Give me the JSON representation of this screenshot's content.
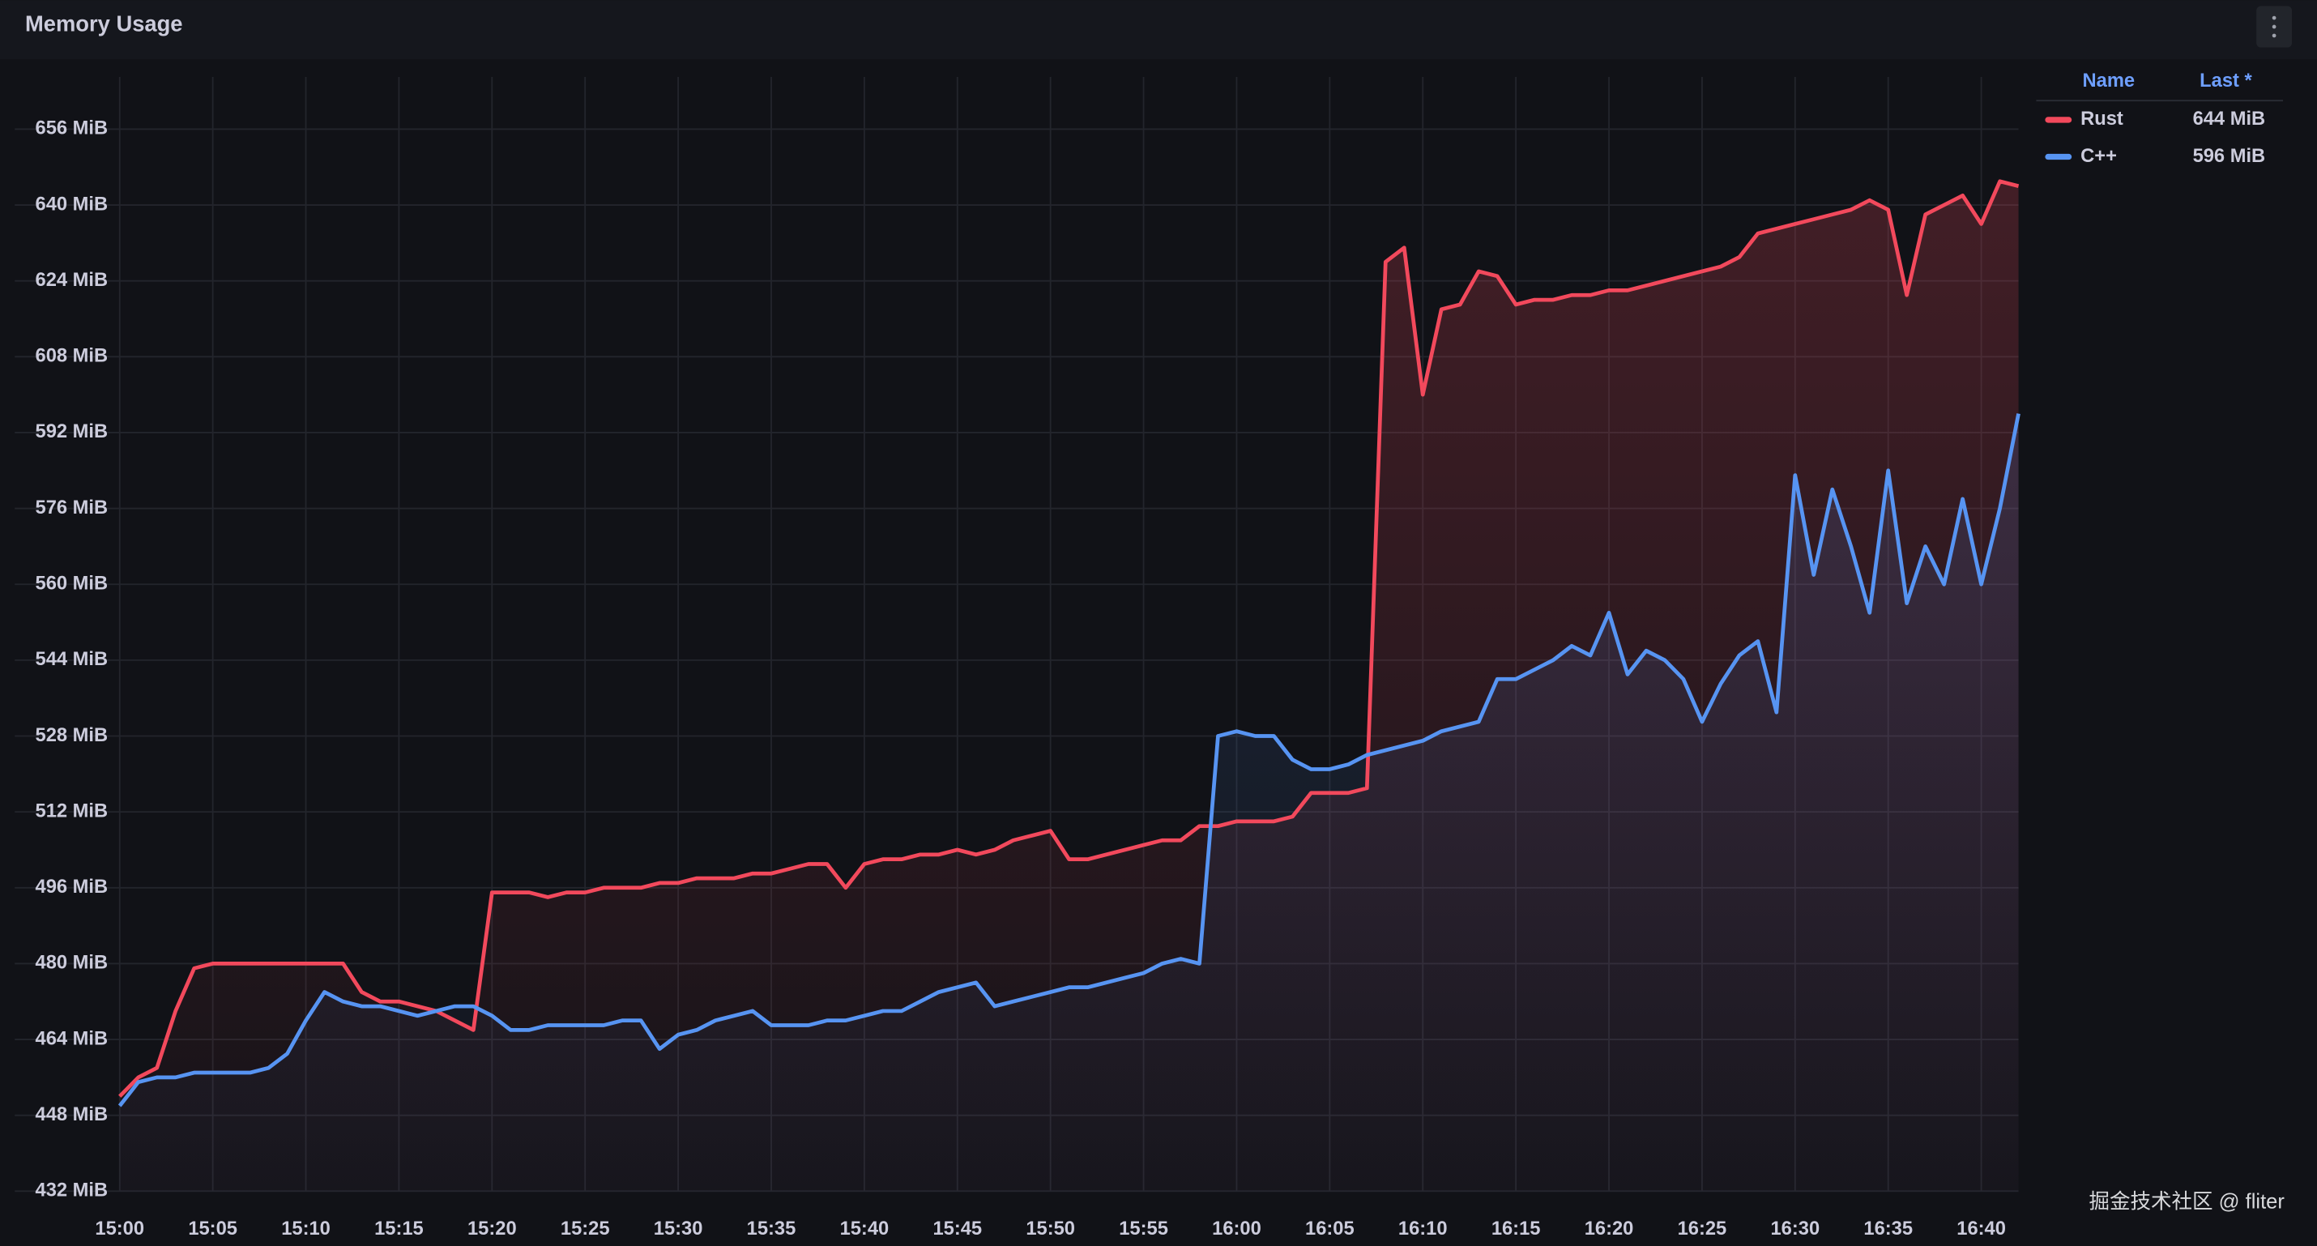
{
  "chart_data": {
    "type": "line",
    "title": "Memory Usage",
    "x": [
      "15:00",
      "15:01",
      "15:02",
      "15:03",
      "15:04",
      "15:05",
      "15:06",
      "15:07",
      "15:08",
      "15:09",
      "15:10",
      "15:11",
      "15:12",
      "15:13",
      "15:14",
      "15:15",
      "15:16",
      "15:17",
      "15:18",
      "15:19",
      "15:20",
      "15:21",
      "15:22",
      "15:23",
      "15:24",
      "15:25",
      "15:26",
      "15:27",
      "15:28",
      "15:29",
      "15:30",
      "15:31",
      "15:32",
      "15:33",
      "15:34",
      "15:35",
      "15:36",
      "15:37",
      "15:38",
      "15:39",
      "15:40",
      "15:41",
      "15:42",
      "15:43",
      "15:44",
      "15:45",
      "15:46",
      "15:47",
      "15:48",
      "15:49",
      "15:50",
      "15:51",
      "15:52",
      "15:53",
      "15:54",
      "15:55",
      "15:56",
      "15:57",
      "15:58",
      "15:59",
      "16:00",
      "16:01",
      "16:02",
      "16:03",
      "16:04",
      "16:05",
      "16:06",
      "16:07",
      "16:08",
      "16:09",
      "16:10",
      "16:11",
      "16:12",
      "16:13",
      "16:14",
      "16:15",
      "16:16",
      "16:17",
      "16:18",
      "16:19",
      "16:20",
      "16:21",
      "16:22",
      "16:23",
      "16:24",
      "16:25",
      "16:26",
      "16:27",
      "16:28",
      "16:29",
      "16:30",
      "16:31",
      "16:32",
      "16:33",
      "16:34",
      "16:35",
      "16:36",
      "16:37",
      "16:38",
      "16:39",
      "16:40",
      "16:41",
      "16:42"
    ],
    "series": [
      {
        "name": "Rust",
        "color": "#f2495c",
        "last_label": "644 MiB",
        "values": [
          452,
          456,
          458,
          470,
          479,
          480,
          480,
          480,
          480,
          480,
          480,
          480,
          480,
          474,
          472,
          472,
          471,
          470,
          468,
          466,
          495,
          495,
          495,
          494,
          495,
          495,
          496,
          496,
          496,
          497,
          497,
          498,
          498,
          498,
          499,
          499,
          500,
          501,
          501,
          496,
          501,
          502,
          502,
          503,
          503,
          504,
          503,
          504,
          506,
          507,
          508,
          502,
          502,
          503,
          504,
          505,
          506,
          506,
          509,
          509,
          510,
          510,
          510,
          511,
          516,
          516,
          516,
          517,
          628,
          631,
          600,
          618,
          619,
          626,
          625,
          619,
          620,
          620,
          621,
          621,
          622,
          622,
          623,
          624,
          625,
          626,
          627,
          629,
          634,
          635,
          636,
          637,
          638,
          639,
          641,
          639,
          621,
          638,
          640,
          642,
          636,
          645,
          644
        ]
      },
      {
        "name": "C++",
        "color": "#5794f2",
        "last_label": "596 MiB",
        "values": [
          450,
          455,
          456,
          456,
          457,
          457,
          457,
          457,
          458,
          461,
          468,
          474,
          472,
          471,
          471,
          470,
          469,
          470,
          471,
          471,
          469,
          466,
          466,
          467,
          467,
          467,
          467,
          468,
          468,
          462,
          465,
          466,
          468,
          469,
          470,
          467,
          467,
          467,
          468,
          468,
          469,
          470,
          470,
          472,
          474,
          475,
          476,
          471,
          472,
          473,
          474,
          475,
          475,
          476,
          477,
          478,
          480,
          481,
          480,
          528,
          529,
          528,
          528,
          523,
          521,
          521,
          522,
          524,
          525,
          526,
          527,
          529,
          530,
          531,
          540,
          540,
          542,
          544,
          547,
          545,
          554,
          541,
          546,
          544,
          540,
          531,
          539,
          545,
          548,
          533,
          583,
          562,
          580,
          568,
          554,
          584,
          556,
          568,
          560,
          578,
          560,
          576,
          596
        ]
      }
    ],
    "xlim": [
      "15:00",
      "16:42"
    ],
    "xticks": [
      "15:00",
      "15:05",
      "15:10",
      "15:15",
      "15:20",
      "15:25",
      "15:30",
      "15:35",
      "15:40",
      "15:45",
      "15:50",
      "15:55",
      "16:00",
      "16:05",
      "16:10",
      "16:15",
      "16:20",
      "16:25",
      "16:30",
      "16:35",
      "16:40"
    ],
    "ylim": [
      432,
      667
    ],
    "yticks": [
      {
        "value": 432,
        "label": "432 MiB"
      },
      {
        "value": 448,
        "label": "448 MiB"
      },
      {
        "value": 464,
        "label": "464 MiB"
      },
      {
        "value": 480,
        "label": "480 MiB"
      },
      {
        "value": 496,
        "label": "496 MiB"
      },
      {
        "value": 512,
        "label": "512 MiB"
      },
      {
        "value": 528,
        "label": "528 MiB"
      },
      {
        "value": 544,
        "label": "544 MiB"
      },
      {
        "value": 560,
        "label": "560 MiB"
      },
      {
        "value": 576,
        "label": "576 MiB"
      },
      {
        "value": 592,
        "label": "592 MiB"
      },
      {
        "value": 608,
        "label": "608 MiB"
      },
      {
        "value": 624,
        "label": "624 MiB"
      },
      {
        "value": 640,
        "label": "640 MiB"
      },
      {
        "value": 656,
        "label": "656 MiB"
      }
    ],
    "grid": true,
    "legend": {
      "position": "right",
      "name_header": "Name",
      "value_header": "Last *"
    },
    "watermark": "掘金技术社区 @ fliter"
  }
}
